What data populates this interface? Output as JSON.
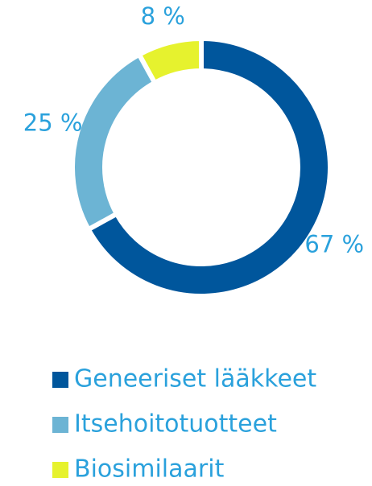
{
  "chart_data": {
    "type": "donut",
    "categories": [
      "Geneeriset lääkkeet",
      "Itsehoitotuotteet",
      "Biosimilaarit"
    ],
    "values": [
      67,
      25,
      8
    ],
    "value_labels": [
      "67 %",
      "25 %",
      "8 %"
    ],
    "colors": [
      "#00569c",
      "#6cb4d4",
      "#e6f22e"
    ],
    "legend": "bottom"
  }
}
